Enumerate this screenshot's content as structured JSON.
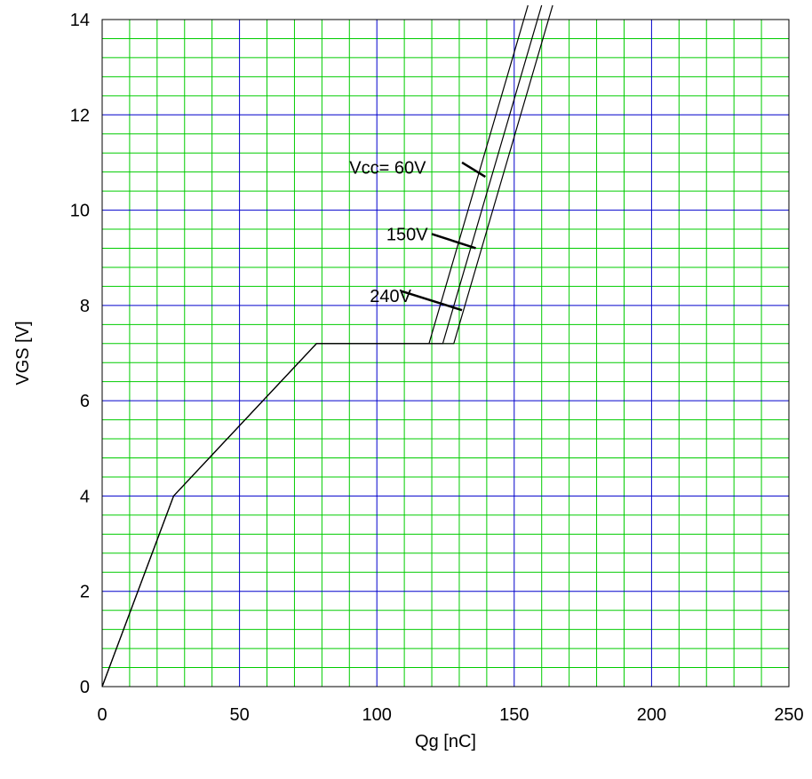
{
  "chart_data": {
    "type": "line",
    "title": "",
    "xlabel": "Qg [nC]",
    "ylabel": "VGS [V]",
    "xlim": [
      0,
      250
    ],
    "ylim": [
      0,
      14
    ],
    "x_ticks": [
      0,
      50,
      100,
      150,
      200,
      250
    ],
    "x_tick_labels": [
      "0",
      "50",
      "100",
      "150",
      "200",
      "250"
    ],
    "y_ticks": [
      0,
      2,
      4,
      6,
      8,
      10,
      12,
      14
    ],
    "y_tick_labels": [
      "0",
      "2",
      "4",
      "6",
      "8",
      "10",
      "12",
      "14"
    ],
    "grid": {
      "major": true,
      "minor": true,
      "major_color": "#0000cc",
      "minor_color": "#00cc00",
      "x_major_step": 50,
      "x_minor_step": 10,
      "y_major_step": 2,
      "y_minor_step": 0.4
    },
    "line_color": "#000000",
    "series": [
      {
        "x": [
          0,
          26,
          78,
          119,
          155
        ],
        "y": [
          0,
          4.0,
          7.2,
          7.2,
          14.3
        ]
      },
      {
        "x": [
          0,
          26,
          78,
          124,
          160
        ],
        "y": [
          0,
          4.0,
          7.2,
          7.2,
          14.3
        ]
      },
      {
        "x": [
          0,
          26,
          78,
          128,
          164
        ],
        "y": [
          0,
          4.0,
          7.2,
          7.2,
          14.3
        ]
      }
    ],
    "annotations": [
      {
        "text": "Vcc= 60V",
        "text_x": 90,
        "text_y": 10.9,
        "anchor": "start",
        "leader_from": [
          131,
          11.0
        ],
        "leader_to": [
          139.5,
          10.7
        ]
      },
      {
        "text": "150V",
        "text_x": 111,
        "text_y": 9.5,
        "anchor": "middle",
        "leader_from": [
          120,
          9.5
        ],
        "leader_to": [
          136,
          9.2
        ]
      },
      {
        "text": "240V",
        "text_x": 105,
        "text_y": 8.2,
        "anchor": "middle",
        "leader_from": [
          109,
          8.3
        ],
        "leader_to": [
          131,
          7.9
        ]
      }
    ]
  }
}
